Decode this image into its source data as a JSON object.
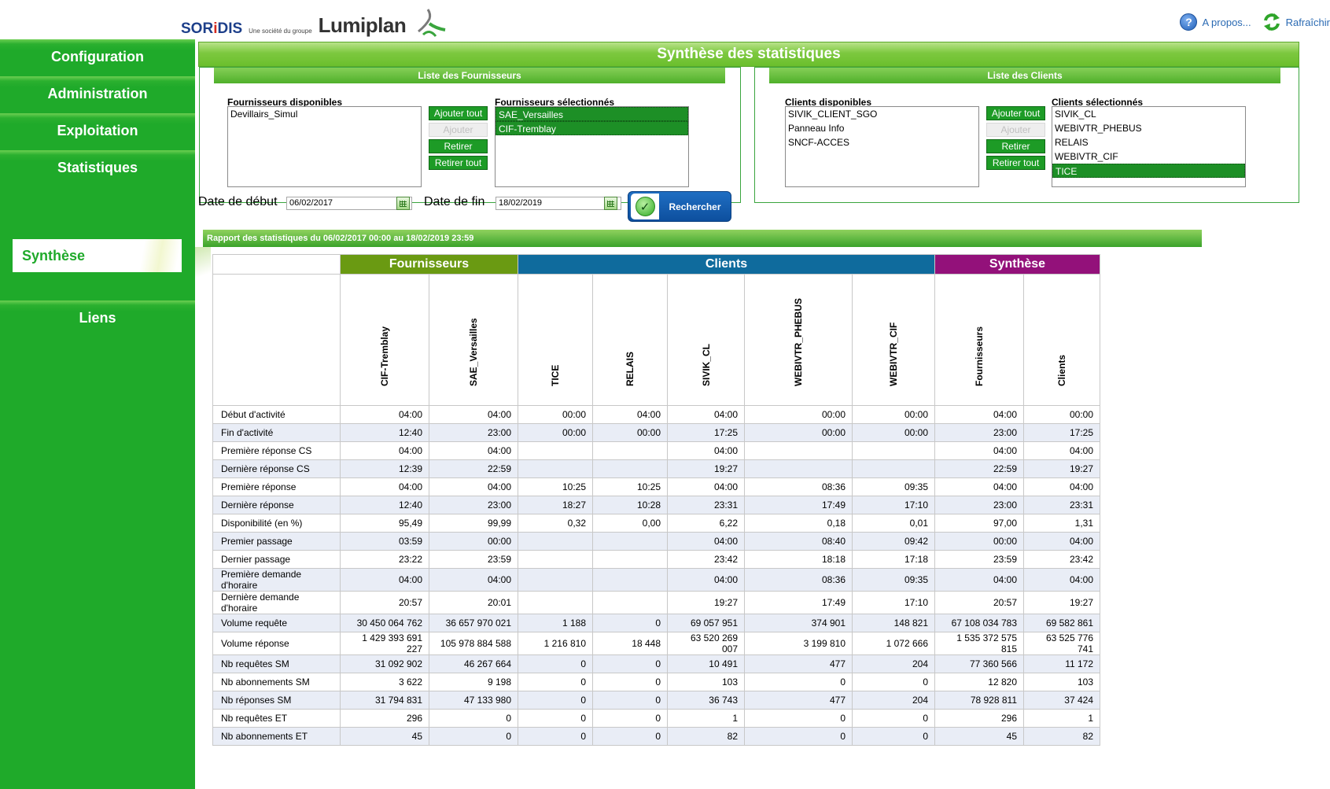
{
  "header": {
    "logo_soridis_a": "SOR",
    "logo_soridis_i": "i",
    "logo_soridis_b": "DIS",
    "logo_tagline": "Une société du groupe",
    "logo_lumiplan": "Lumiplan",
    "about_label": "A propos...",
    "refresh_label": "Rafraîchir"
  },
  "sidebar": {
    "items": [
      {
        "label": "Configuration"
      },
      {
        "label": "Administration"
      },
      {
        "label": "Exploitation"
      },
      {
        "label": "Statistiques"
      },
      {
        "label": "Synthèse"
      },
      {
        "label": "Liens"
      }
    ]
  },
  "page_title": "Synthèse des statistiques",
  "fournisseurs": {
    "header": "Liste des Fournisseurs",
    "available_label": "Fournisseurs disponibles",
    "selected_label": "Fournisseurs sélectionnés",
    "available": [
      "Devillairs_Simul"
    ],
    "selected": [
      "SAE_Versailles",
      "CIF-Tremblay"
    ],
    "buttons": [
      "Ajouter tout",
      "Ajouter",
      "Retirer",
      "Retirer tout"
    ]
  },
  "clients": {
    "header": "Liste des Clients",
    "available_label": "Clients disponibles",
    "selected_label": "Clients sélectionnés",
    "available": [
      "SIVIK_CLIENT_SGO",
      "Panneau Info",
      "SNCF-ACCES"
    ],
    "selected": [
      "SIVIK_CL",
      "WEBIVTR_PHEBUS",
      "RELAIS",
      "WEBIVTR_CIF",
      "TICE"
    ],
    "buttons": [
      "Ajouter tout",
      "Ajouter",
      "Retirer",
      "Retirer tout"
    ]
  },
  "dates": {
    "start_label": "Date de début",
    "start_value": "06/02/2017",
    "end_label": "Date de fin",
    "end_value": "18/02/2019"
  },
  "search_label": "Rechercher",
  "report_title": "Rapport des statistiques du 06/02/2017 00:00 au 18/02/2019 23:59",
  "table": {
    "groups": [
      "Fournisseurs",
      "Clients",
      "Synthèse"
    ],
    "columns": [
      "CIF-Tremblay",
      "SAE_Versailles",
      "TICE",
      "RELAIS",
      "SIVIK_CL",
      "WEBIVTR_PHEBUS",
      "WEBIVTR_CIF",
      "Fournisseurs",
      "Clients"
    ],
    "rows": [
      {
        "label": "Début d'activité",
        "values": [
          "04:00",
          "04:00",
          "00:00",
          "04:00",
          "04:00",
          "00:00",
          "00:00",
          "04:00",
          "00:00"
        ]
      },
      {
        "label": "Fin d'activité",
        "values": [
          "12:40",
          "23:00",
          "00:00",
          "00:00",
          "17:25",
          "00:00",
          "00:00",
          "23:00",
          "17:25"
        ]
      },
      {
        "label": "Première réponse CS",
        "values": [
          "04:00",
          "04:00",
          "",
          "",
          "04:00",
          "",
          "",
          "04:00",
          "04:00"
        ]
      },
      {
        "label": "Dernière réponse CS",
        "values": [
          "12:39",
          "22:59",
          "",
          "",
          "19:27",
          "",
          "",
          "22:59",
          "19:27"
        ]
      },
      {
        "label": "Première réponse",
        "values": [
          "04:00",
          "04:00",
          "10:25",
          "10:25",
          "04:00",
          "08:36",
          "09:35",
          "04:00",
          "04:00"
        ]
      },
      {
        "label": "Dernière réponse",
        "values": [
          "12:40",
          "23:00",
          "18:27",
          "10:28",
          "23:31",
          "17:49",
          "17:10",
          "23:00",
          "23:31"
        ]
      },
      {
        "label": "Disponibilité (en %)",
        "values": [
          "95,49",
          "99,99",
          "0,32",
          "0,00",
          "6,22",
          "0,18",
          "0,01",
          "97,00",
          "1,31"
        ]
      },
      {
        "label": "Premier passage",
        "values": [
          "03:59",
          "00:00",
          "",
          "",
          "04:00",
          "08:40",
          "09:42",
          "00:00",
          "04:00"
        ]
      },
      {
        "label": "Dernier passage",
        "values": [
          "23:22",
          "23:59",
          "",
          "",
          "23:42",
          "18:18",
          "17:18",
          "23:59",
          "23:42"
        ]
      },
      {
        "label": "Première demande d'horaire",
        "values": [
          "04:00",
          "04:00",
          "",
          "",
          "04:00",
          "08:36",
          "09:35",
          "04:00",
          "04:00"
        ]
      },
      {
        "label": "Dernière demande d'horaire",
        "values": [
          "20:57",
          "20:01",
          "",
          "",
          "19:27",
          "17:49",
          "17:10",
          "20:57",
          "19:27"
        ]
      },
      {
        "label": "Volume requête",
        "values": [
          "30 450 064 762",
          "36 657 970 021",
          "1 188",
          "0",
          "69 057 951",
          "374 901",
          "148 821",
          "67 108 034 783",
          "69 582 861"
        ]
      },
      {
        "label": "Volume réponse",
        "values": [
          "1 429 393 691 227",
          "105 978 884 588",
          "1 216 810",
          "18 448",
          "63 520 269 007",
          "3 199 810",
          "1 072 666",
          "1 535 372 575 815",
          "63 525 776 741"
        ]
      },
      {
        "label": "Nb requêtes SM",
        "values": [
          "31 092 902",
          "46 267 664",
          "0",
          "0",
          "10 491",
          "477",
          "204",
          "77 360 566",
          "11 172"
        ]
      },
      {
        "label": "Nb abonnements SM",
        "values": [
          "3 622",
          "9 198",
          "0",
          "0",
          "103",
          "0",
          "0",
          "12 820",
          "103"
        ]
      },
      {
        "label": "Nb réponses SM",
        "values": [
          "31 794 831",
          "47 133 980",
          "0",
          "0",
          "36 743",
          "477",
          "204",
          "78 928 811",
          "37 424"
        ]
      },
      {
        "label": "Nb requêtes ET",
        "values": [
          "296",
          "0",
          "0",
          "0",
          "1",
          "0",
          "0",
          "296",
          "1"
        ]
      },
      {
        "label": "Nb abonnements ET",
        "values": [
          "45",
          "0",
          "0",
          "0",
          "82",
          "0",
          "0",
          "45",
          "82"
        ]
      }
    ]
  }
}
